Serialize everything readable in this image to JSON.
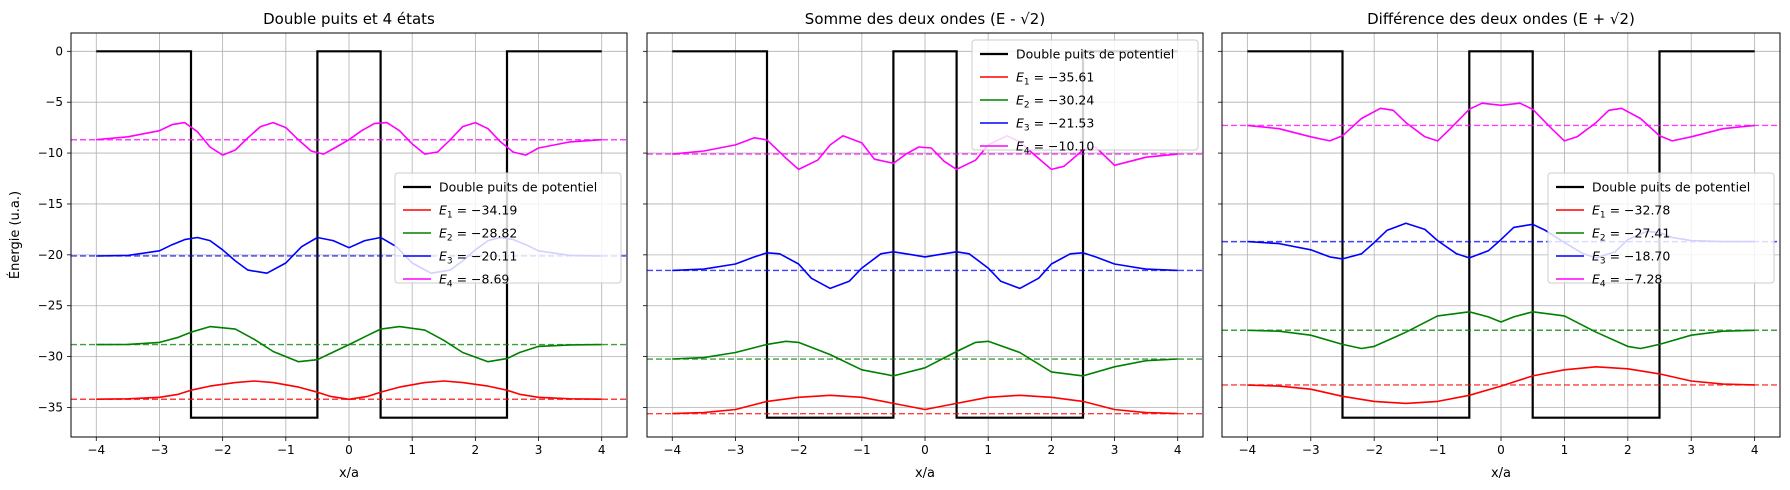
{
  "figure": {
    "ylabel_shared": "Énergie (u.a.)"
  },
  "chart_data": [
    {
      "type": "line",
      "title": "Double puits et 4 états",
      "xlabel": "x/a",
      "ylabel": "Énergie (u.a.)",
      "xlim": [
        -4.4,
        4.4
      ],
      "ylim": [
        -37.9,
        1.8
      ],
      "xticks": [
        -4,
        -3,
        -2,
        -1,
        0,
        1,
        2,
        3,
        4
      ],
      "xticklabels": [
        "−4",
        "−3",
        "−2",
        "−1",
        "0",
        "1",
        "2",
        "3",
        "4"
      ],
      "yticks": [
        0,
        -5,
        -10,
        -15,
        -20,
        -25,
        -30,
        -35
      ],
      "yticklabels": [
        "0",
        "−5",
        "−10",
        "−15",
        "−20",
        "−25",
        "−30",
        "−35"
      ],
      "grid": true,
      "legend_location": "center-right",
      "potential": {
        "name": "Double puits de potentiel",
        "color": "#000000",
        "x": [
          -4,
          -2.5,
          -2.5,
          -0.5,
          -0.5,
          0.5,
          0.5,
          2.5,
          2.5,
          4
        ],
        "y": [
          0,
          0,
          -36,
          -36,
          0,
          0,
          -36,
          -36,
          0,
          0
        ]
      },
      "series": [
        {
          "name": "E1 = −34.19",
          "label_base": "E",
          "label_sub": "1",
          "label_value": " = −34.19",
          "energy": -34.19,
          "color": "#ff0000",
          "x": [
            -4,
            -3.5,
            -3,
            -2.7,
            -2.5,
            -2.2,
            -1.8,
            -1.5,
            -1.2,
            -0.8,
            -0.5,
            -0.3,
            0,
            0.3,
            0.5,
            0.8,
            1.2,
            1.5,
            1.8,
            2.2,
            2.5,
            2.7,
            3,
            3.5,
            4
          ],
          "y": [
            -34.19,
            -34.15,
            -34,
            -33.7,
            -33.3,
            -32.9,
            -32.55,
            -32.4,
            -32.55,
            -33.0,
            -33.5,
            -33.9,
            -34.2,
            -33.9,
            -33.5,
            -33.0,
            -32.55,
            -32.4,
            -32.55,
            -32.9,
            -33.3,
            -33.7,
            -34.0,
            -34.15,
            -34.19
          ]
        },
        {
          "name": "E2 = −28.82",
          "label_base": "E",
          "label_sub": "2",
          "label_value": " = −28.82",
          "energy": -28.82,
          "color": "#008000",
          "x": [
            -4,
            -3.5,
            -3,
            -2.7,
            -2.5,
            -2.2,
            -1.8,
            -1.5,
            -1.2,
            -0.8,
            -0.5,
            -0.3,
            0,
            0.3,
            0.5,
            0.8,
            1.2,
            1.5,
            1.8,
            2.2,
            2.5,
            2.7,
            3,
            3.5,
            4
          ],
          "y": [
            -28.82,
            -28.8,
            -28.6,
            -28.1,
            -27.6,
            -27.05,
            -27.3,
            -28.3,
            -29.5,
            -30.5,
            -30.3,
            -29.7,
            -28.82,
            -27.9,
            -27.3,
            -27.05,
            -27.4,
            -28.4,
            -29.6,
            -30.5,
            -30.2,
            -29.6,
            -29.0,
            -28.85,
            -28.82
          ]
        },
        {
          "name": "E3 = −20.11",
          "label_base": "E",
          "label_sub": "3",
          "label_value": " = −20.11",
          "energy": -20.11,
          "color": "#0000ff",
          "x": [
            -4,
            -3.5,
            -3,
            -2.8,
            -2.6,
            -2.4,
            -2.2,
            -2.0,
            -1.8,
            -1.6,
            -1.3,
            -1.0,
            -0.75,
            -0.5,
            -0.25,
            0,
            0.25,
            0.5,
            0.75,
            1.0,
            1.3,
            1.6,
            1.8,
            2.0,
            2.2,
            2.4,
            2.6,
            2.8,
            3,
            3.5,
            4
          ],
          "y": [
            -20.11,
            -20.05,
            -19.6,
            -19.0,
            -18.5,
            -18.3,
            -18.6,
            -19.5,
            -20.6,
            -21.5,
            -21.8,
            -20.8,
            -19.2,
            -18.3,
            -18.6,
            -19.3,
            -18.6,
            -18.3,
            -19.2,
            -20.8,
            -21.8,
            -21.5,
            -20.6,
            -19.5,
            -18.6,
            -18.3,
            -18.5,
            -19.0,
            -19.6,
            -20.05,
            -20.11
          ]
        },
        {
          "name": "E4 = −8.69",
          "label_base": "E",
          "label_sub": "4",
          "label_value": " = −8.69",
          "energy": -8.69,
          "color": "#ff00ff",
          "x": [
            -4,
            -3.5,
            -3,
            -2.8,
            -2.6,
            -2.4,
            -2.2,
            -2.0,
            -1.8,
            -1.6,
            -1.4,
            -1.2,
            -1.0,
            -0.8,
            -0.6,
            -0.4,
            -0.2,
            0,
            0.2,
            0.4,
            0.6,
            0.8,
            1.0,
            1.2,
            1.4,
            1.6,
            1.8,
            2.0,
            2.2,
            2.4,
            2.6,
            2.8,
            3,
            3.5,
            4
          ],
          "y": [
            -8.69,
            -8.4,
            -7.8,
            -7.2,
            -7.0,
            -7.9,
            -9.4,
            -10.2,
            -9.7,
            -8.5,
            -7.4,
            -7.0,
            -7.5,
            -8.7,
            -9.8,
            -10.1,
            -9.4,
            -8.69,
            -7.8,
            -7.1,
            -7.0,
            -7.8,
            -9.1,
            -10.1,
            -9.9,
            -8.7,
            -7.4,
            -7.0,
            -7.6,
            -8.9,
            -9.9,
            -10.2,
            -9.5,
            -8.9,
            -8.69
          ]
        }
      ]
    },
    {
      "type": "line",
      "title": "Somme des deux ondes (E - √2)",
      "xlabel": "x/a",
      "xlim": [
        -4.4,
        4.4
      ],
      "ylim": [
        -37.9,
        1.8
      ],
      "xticks": [
        -4,
        -3,
        -2,
        -1,
        0,
        1,
        2,
        3,
        4
      ],
      "xticklabels": [
        "−4",
        "−3",
        "−2",
        "−1",
        "0",
        "1",
        "2",
        "3",
        "4"
      ],
      "grid": true,
      "legend_location": "top-right",
      "potential": {
        "name": "Double puits de potentiel",
        "color": "#000000",
        "x": [
          -4,
          -2.5,
          -2.5,
          -0.5,
          -0.5,
          0.5,
          0.5,
          2.5,
          2.5,
          4
        ],
        "y": [
          0,
          0,
          -36,
          -36,
          0,
          0,
          -36,
          -36,
          0,
          0
        ]
      },
      "series": [
        {
          "name": "E1 = −35.61",
          "label_base": "E",
          "label_sub": "1",
          "label_value": " = −35.61",
          "energy": -35.61,
          "color": "#ff0000",
          "x": [
            -4,
            -3.5,
            -3,
            -2.5,
            -2,
            -1.5,
            -1,
            -0.5,
            0,
            0.5,
            1,
            1.5,
            2,
            2.5,
            3,
            3.5,
            4
          ],
          "y": [
            -35.6,
            -35.5,
            -35.2,
            -34.4,
            -34.0,
            -33.8,
            -34.0,
            -34.6,
            -35.2,
            -34.6,
            -34.0,
            -33.8,
            -34.0,
            -34.4,
            -35.2,
            -35.5,
            -35.6
          ]
        },
        {
          "name": "E2 = −30.24",
          "label_base": "E",
          "label_sub": "2",
          "label_value": " = −30.24",
          "energy": -30.24,
          "color": "#008000",
          "x": [
            -4,
            -3.5,
            -3,
            -2.5,
            -2.2,
            -2,
            -1.5,
            -1,
            -0.5,
            0,
            0.5,
            0.8,
            1,
            1.5,
            2,
            2.5,
            3,
            3.5,
            4
          ],
          "y": [
            -30.24,
            -30.1,
            -29.6,
            -28.8,
            -28.5,
            -28.6,
            -29.8,
            -31.3,
            -31.9,
            -31.1,
            -29.5,
            -28.6,
            -28.5,
            -29.6,
            -31.5,
            -31.9,
            -31.0,
            -30.4,
            -30.24
          ]
        },
        {
          "name": "E3 = −21.53",
          "label_base": "E",
          "label_sub": "3",
          "label_value": " = −21.53",
          "energy": -21.53,
          "color": "#0000ff",
          "x": [
            -4,
            -3.5,
            -3,
            -2.7,
            -2.5,
            -2.3,
            -2,
            -1.8,
            -1.5,
            -1.2,
            -1,
            -0.7,
            -0.5,
            -0.2,
            0,
            0.2,
            0.5,
            0.7,
            1,
            1.2,
            1.5,
            1.8,
            2,
            2.3,
            2.5,
            2.7,
            3,
            3.5,
            4
          ],
          "y": [
            -21.53,
            -21.4,
            -20.9,
            -20.2,
            -19.8,
            -19.9,
            -20.9,
            -22.3,
            -23.3,
            -22.6,
            -21.3,
            -19.9,
            -19.7,
            -20.0,
            -20.2,
            -20.0,
            -19.7,
            -19.9,
            -21.3,
            -22.6,
            -23.3,
            -22.3,
            -20.9,
            -19.9,
            -19.8,
            -20.2,
            -20.9,
            -21.4,
            -21.53
          ]
        },
        {
          "name": "E4 = −10.10",
          "label_base": "E",
          "label_sub": "4",
          "label_value": " = −10.10",
          "energy": -10.1,
          "color": "#ff00ff",
          "x": [
            -4,
            -3.5,
            -3,
            -2.7,
            -2.5,
            -2.2,
            -2,
            -1.7,
            -1.5,
            -1.3,
            -1,
            -0.8,
            -0.5,
            -0.3,
            -0.1,
            0.1,
            0.3,
            0.5,
            0.8,
            1,
            1.3,
            1.5,
            1.7,
            2,
            2.2,
            2.5,
            2.7,
            3,
            3.5,
            4
          ],
          "y": [
            -10.1,
            -9.8,
            -9.2,
            -8.5,
            -8.7,
            -10.5,
            -11.6,
            -10.7,
            -9.2,
            -8.3,
            -9.0,
            -10.6,
            -11.0,
            -10.1,
            -9.4,
            -9.5,
            -10.8,
            -11.6,
            -10.7,
            -9.2,
            -8.3,
            -8.9,
            -10.0,
            -11.6,
            -11.3,
            -9.7,
            -9.4,
            -11.2,
            -10.4,
            -10.1
          ]
        }
      ]
    },
    {
      "type": "line",
      "title": "Différence des deux ondes (E + √2)",
      "xlabel": "x/a",
      "xlim": [
        -4.4,
        4.4
      ],
      "ylim": [
        -37.9,
        1.8
      ],
      "xticks": [
        -4,
        -3,
        -2,
        -1,
        0,
        1,
        2,
        3,
        4
      ],
      "xticklabels": [
        "−4",
        "−3",
        "−2",
        "−1",
        "0",
        "1",
        "2",
        "3",
        "4"
      ],
      "grid": true,
      "legend_location": "center-right",
      "potential": {
        "name": "Double puits de potentiel",
        "color": "#000000",
        "x": [
          -4,
          -2.5,
          -2.5,
          -0.5,
          -0.5,
          0.5,
          0.5,
          2.5,
          2.5,
          4
        ],
        "y": [
          0,
          0,
          -36,
          -36,
          0,
          0,
          -36,
          -36,
          0,
          0
        ]
      },
      "series": [
        {
          "name": "E1 = −32.78",
          "label_base": "E",
          "label_sub": "1",
          "label_value": " = −32.78",
          "energy": -32.78,
          "color": "#ff0000",
          "x": [
            -4,
            -3.5,
            -3,
            -2.5,
            -2,
            -1.5,
            -1,
            -0.5,
            0,
            0.5,
            1,
            1.5,
            2,
            2.5,
            3,
            3.5,
            4
          ],
          "y": [
            -32.8,
            -32.9,
            -33.2,
            -33.9,
            -34.4,
            -34.6,
            -34.4,
            -33.8,
            -32.9,
            -31.9,
            -31.3,
            -31.0,
            -31.2,
            -31.7,
            -32.4,
            -32.7,
            -32.78
          ]
        },
        {
          "name": "E2 = −27.41",
          "label_base": "E",
          "label_sub": "2",
          "label_value": " = −27.41",
          "energy": -27.41,
          "color": "#008000",
          "x": [
            -4,
            -3.5,
            -3,
            -2.5,
            -2.2,
            -2,
            -1.5,
            -1,
            -0.5,
            -0.2,
            0,
            0.2,
            0.5,
            1,
            1.5,
            2,
            2.2,
            2.5,
            3,
            3.5,
            4
          ],
          "y": [
            -27.41,
            -27.5,
            -27.9,
            -28.8,
            -29.2,
            -29.0,
            -27.6,
            -26.0,
            -25.6,
            -26.1,
            -26.6,
            -26.1,
            -25.6,
            -26.0,
            -27.6,
            -29.0,
            -29.2,
            -28.8,
            -27.9,
            -27.5,
            -27.41
          ]
        },
        {
          "name": "E3 = −18.70",
          "label_base": "E",
          "label_sub": "3",
          "label_value": " = −18.70",
          "energy": -18.7,
          "color": "#0000ff",
          "x": [
            -4,
            -3.5,
            -3,
            -2.7,
            -2.5,
            -2.2,
            -2,
            -1.8,
            -1.5,
            -1.2,
            -1,
            -0.7,
            -0.5,
            -0.2,
            0,
            0.2,
            0.5,
            0.7,
            1,
            1.3,
            1.5,
            1.8,
            2,
            2.3,
            2.5,
            2.7,
            3,
            3.5,
            4
          ],
          "y": [
            -18.7,
            -18.9,
            -19.5,
            -20.2,
            -20.4,
            -19.9,
            -18.8,
            -17.6,
            -16.9,
            -17.5,
            -18.6,
            -19.9,
            -20.3,
            -19.6,
            -18.5,
            -17.3,
            -17.0,
            -17.6,
            -18.8,
            -19.9,
            -20.3,
            -19.7,
            -18.5,
            -17.7,
            -17.8,
            -18.3,
            -18.6,
            -18.7,
            -18.7
          ]
        },
        {
          "name": "E4 = −7.28",
          "label_base": "E",
          "label_sub": "4",
          "label_value": " = −7.28",
          "energy": -7.28,
          "color": "#ff00ff",
          "x": [
            -4,
            -3.5,
            -3,
            -2.7,
            -2.5,
            -2.2,
            -1.9,
            -1.7,
            -1.5,
            -1.2,
            -1,
            -0.8,
            -0.5,
            -0.3,
            0,
            0.3,
            0.5,
            0.8,
            1,
            1.2,
            1.5,
            1.7,
            1.9,
            2.2,
            2.5,
            2.7,
            3,
            3.5,
            4
          ],
          "y": [
            -7.28,
            -7.6,
            -8.4,
            -8.8,
            -8.3,
            -6.6,
            -5.6,
            -5.8,
            -7.0,
            -8.4,
            -8.8,
            -7.6,
            -5.7,
            -5.1,
            -5.3,
            -5.1,
            -5.7,
            -7.6,
            -8.8,
            -8.4,
            -7.0,
            -5.8,
            -5.6,
            -6.6,
            -8.3,
            -8.8,
            -8.4,
            -7.6,
            -7.28
          ]
        }
      ]
    }
  ]
}
